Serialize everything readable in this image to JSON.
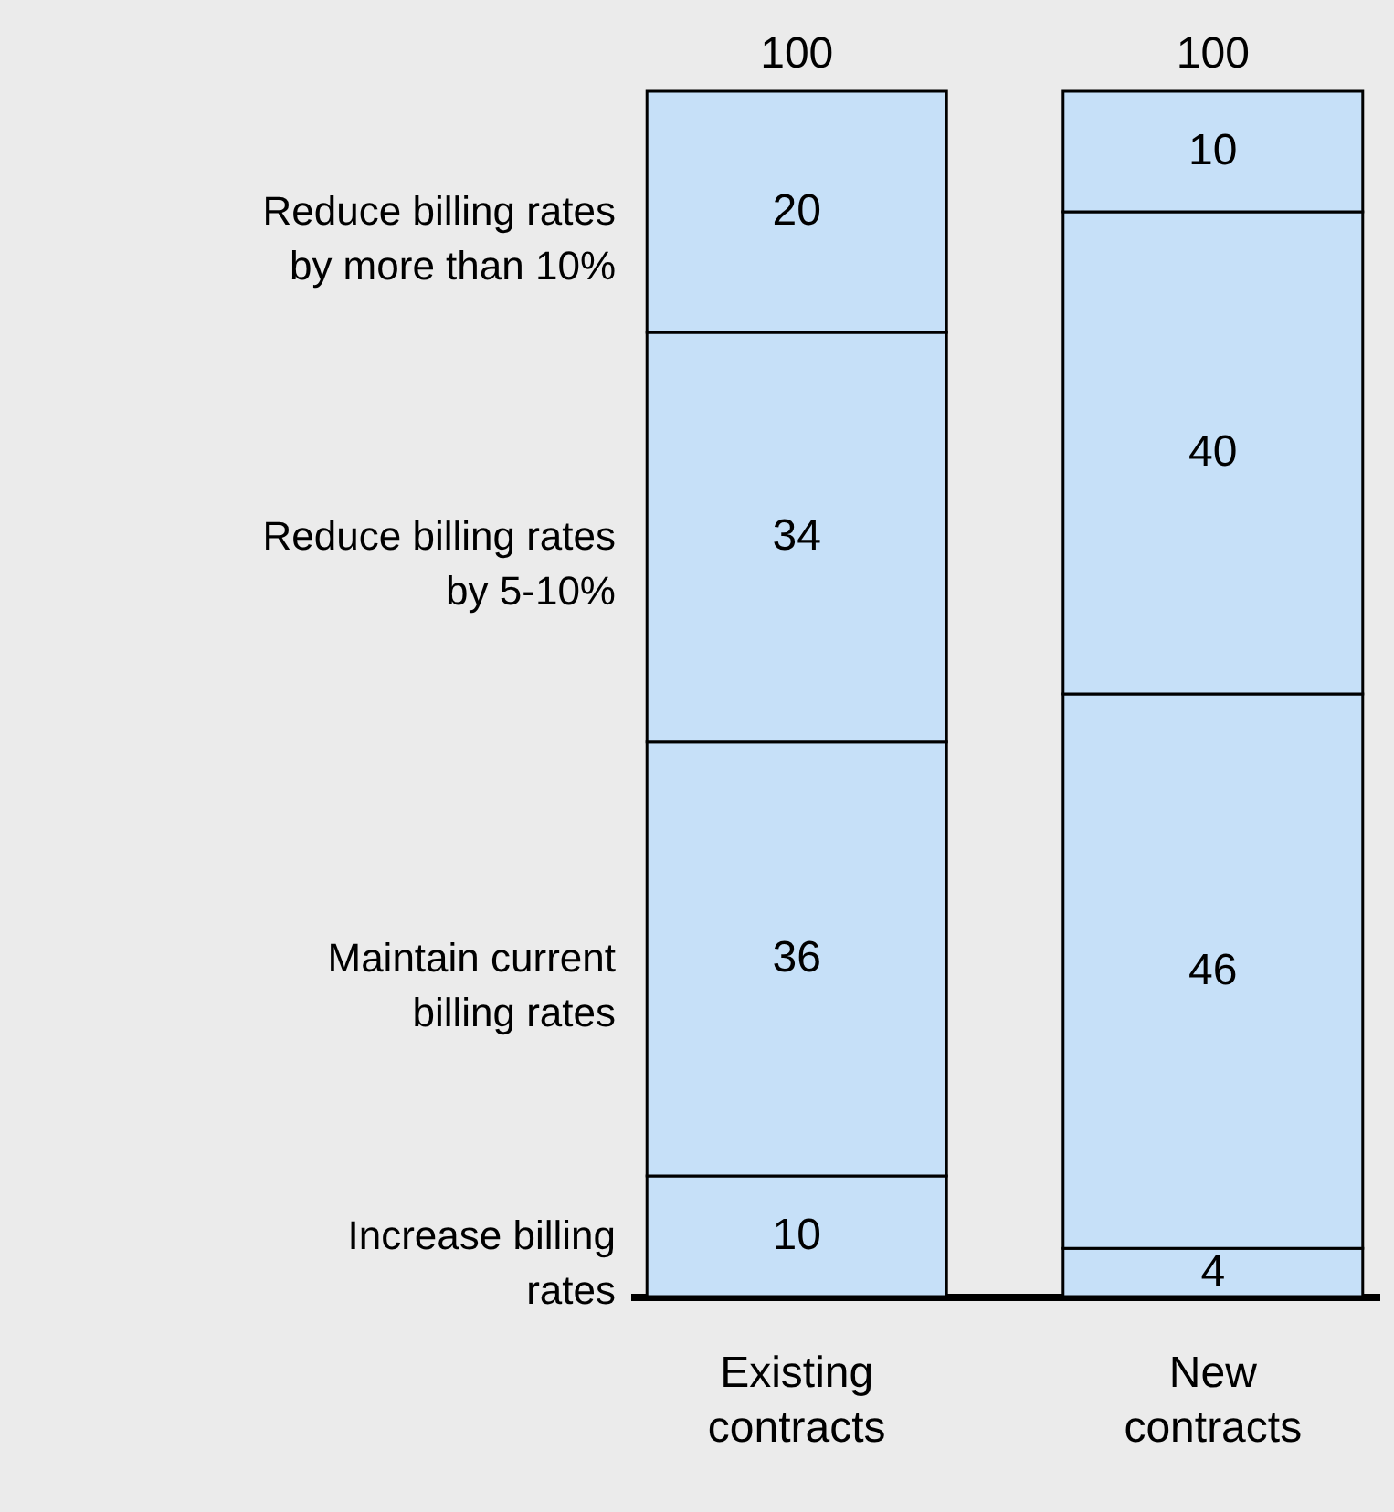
{
  "chart_data": {
    "type": "bar",
    "stacked": true,
    "categories": [
      "Existing contracts",
      "New contracts"
    ],
    "series": [
      {
        "name": "Increase billing rates",
        "color": "#c6e0f8",
        "values": [
          10,
          4
        ]
      },
      {
        "name": "Maintain current billing rates",
        "color": "#c6e0f8",
        "values": [
          36,
          46
        ]
      },
      {
        "name": "Reduce billing rates by 5-10%",
        "color": "#c6e0f8",
        "values": [
          34,
          40
        ]
      },
      {
        "name": "Reduce billing rates by more than 10%",
        "color": "#c6e0f8",
        "values": [
          20,
          10
        ]
      }
    ],
    "data_labels": true,
    "totals": [
      "100",
      "100"
    ]
  }
}
